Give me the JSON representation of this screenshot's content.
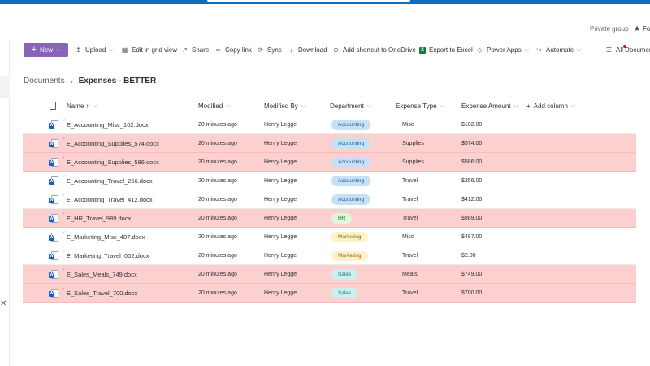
{
  "header": {
    "private_label": "Private group",
    "follow_label": "Fo"
  },
  "commands": {
    "new": "New",
    "upload": "Upload",
    "edit_grid": "Edit in grid view",
    "share": "Share",
    "copy_link": "Copy link",
    "sync": "Sync",
    "download": "Download",
    "add_shortcut": "Add shortcut to OneDrive",
    "export_excel": "Export to Excel",
    "power_apps": "Power Apps",
    "automate": "Automate",
    "more": "···",
    "all_documents": "All Documer"
  },
  "breadcrumb": {
    "root": "Documents",
    "current": "Expenses - BETTER"
  },
  "columns": {
    "name": "Name ↑",
    "modified": "Modified",
    "modified_by": "Modified By",
    "department": "Department",
    "expense_type": "Expense Type",
    "expense_amount": "Expense Amount",
    "add_column": "Add column"
  },
  "rows": [
    {
      "name": "E_Accounting_Misc_102.docx",
      "modified": "20 minutes ago",
      "by": "Henry Legge",
      "department": "Accounting",
      "type": "Misc",
      "amount": "$102.00",
      "highlight": false
    },
    {
      "name": "E_Accounting_Supplies_574.docx",
      "modified": "20 minutes ago",
      "by": "Henry Legge",
      "department": "Accounting",
      "type": "Supplies",
      "amount": "$574.00",
      "highlight": true
    },
    {
      "name": "E_Accounting_Supplies_586.docx",
      "modified": "20 minutes ago",
      "by": "Henry Legge",
      "department": "Accounting",
      "type": "Supplies",
      "amount": "$586.00",
      "highlight": true
    },
    {
      "name": "E_Accounting_Travel_256.docx",
      "modified": "20 minutes ago",
      "by": "Henry Legge",
      "department": "Accounting",
      "type": "Travel",
      "amount": "$256.00",
      "highlight": false
    },
    {
      "name": "E_Accounting_Travel_412.docx",
      "modified": "20 minutes ago",
      "by": "Henry Legge",
      "department": "Accounting",
      "type": "Travel",
      "amount": "$412.00",
      "highlight": false
    },
    {
      "name": "E_HR_Travel_989.docx",
      "modified": "20 minutes ago",
      "by": "Henry Legge",
      "department": "HR",
      "type": "Travel",
      "amount": "$989.00",
      "highlight": true
    },
    {
      "name": "E_Marketing_Misc_487.docx",
      "modified": "20 minutes ago",
      "by": "Henry Legge",
      "department": "Marketing",
      "type": "Misc",
      "amount": "$487.00",
      "highlight": false
    },
    {
      "name": "E_Marketing_Travel_002.docx",
      "modified": "20 minutes ago",
      "by": "Henry Legge",
      "department": "Marketing",
      "type": "Travel",
      "amount": "$2.00",
      "highlight": false
    },
    {
      "name": "E_Sales_Meals_749.docx",
      "modified": "20 minutes ago",
      "by": "Henry Legge",
      "department": "Sales",
      "type": "Meals",
      "amount": "$749.00",
      "highlight": true
    },
    {
      "name": "E_Sales_Travel_700.docx",
      "modified": "20 minutes ago",
      "by": "Henry Legge",
      "department": "Sales",
      "type": "Travel",
      "amount": "$700.00",
      "highlight": true
    }
  ],
  "colors": {
    "accent": "#8764b8",
    "highlight_row": "#fdd0d0",
    "brand_bar": "#0f6cbd"
  }
}
